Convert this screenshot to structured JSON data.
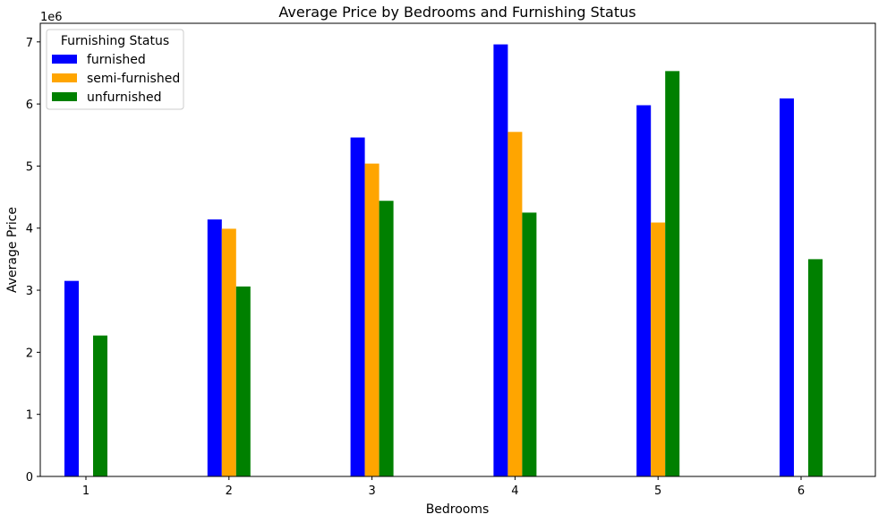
{
  "chart_data": {
    "type": "bar",
    "title": "Average Price by Bedrooms and Furnishing Status",
    "xlabel": "Bedrooms",
    "ylabel": "Average Price",
    "y_offset_label": "1e6",
    "categories": [
      "1",
      "2",
      "3",
      "4",
      "5",
      "6"
    ],
    "ylim": [
      0,
      7300000
    ],
    "y_ticks": [
      {
        "value": 0,
        "label": "0"
      },
      {
        "value": 1000000,
        "label": "1"
      },
      {
        "value": 2000000,
        "label": "2"
      },
      {
        "value": 3000000,
        "label": "3"
      },
      {
        "value": 4000000,
        "label": "4"
      },
      {
        "value": 5000000,
        "label": "5"
      },
      {
        "value": 6000000,
        "label": "6"
      },
      {
        "value": 7000000,
        "label": "7"
      }
    ],
    "grid": false,
    "legend": {
      "title": "Furnishing Status",
      "placement": "top-left"
    },
    "series": [
      {
        "name": "furnished",
        "color": "#0000ff",
        "values": [
          3150000,
          4140000,
          5460000,
          6960000,
          5980000,
          6090000
        ]
      },
      {
        "name": "semi-furnished",
        "color": "#ffa500",
        "values": [
          null,
          3990000,
          5040000,
          5550000,
          4090000,
          null
        ]
      },
      {
        "name": "unfurnished",
        "color": "#008000",
        "values": [
          2270000,
          3060000,
          4440000,
          4250000,
          6530000,
          3500000
        ]
      }
    ]
  }
}
